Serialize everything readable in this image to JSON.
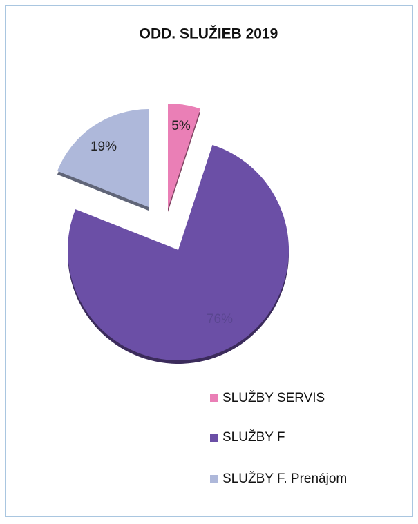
{
  "chart_data": {
    "type": "pie",
    "title": "ODD. SLUŽIEB 2019",
    "categories": [
      "SLUŽBY SERVIS",
      "SLUŽBY F",
      "SLUŽBY F. Prenájom"
    ],
    "values": [
      5,
      76,
      19
    ],
    "value_labels": [
      "5%",
      "76%",
      "19%"
    ],
    "colors": [
      "#ea7fb6",
      "#6b4fa6",
      "#aeb8da"
    ],
    "legend": "bottom-right"
  }
}
